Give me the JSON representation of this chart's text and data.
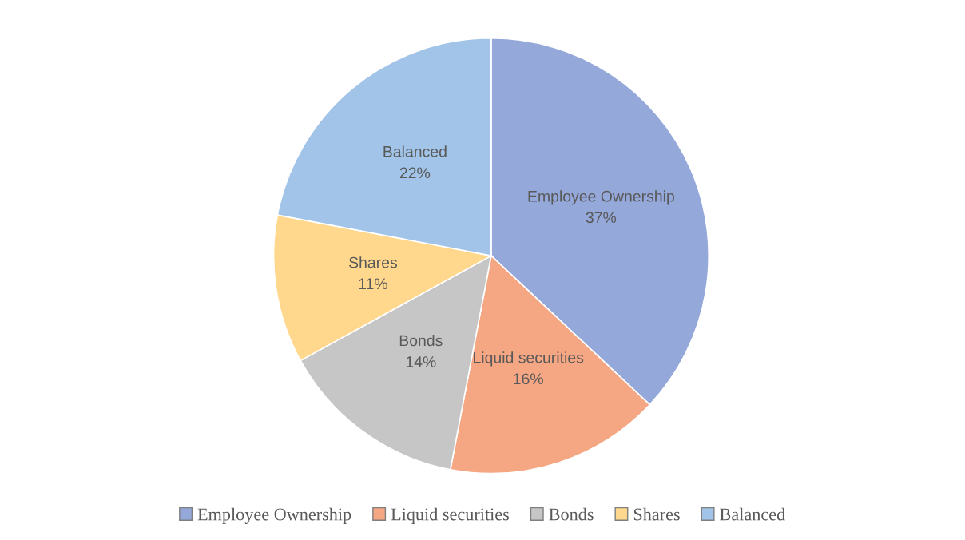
{
  "chart_data": {
    "type": "pie",
    "categories": [
      "Employee Ownership",
      "Liquid securities",
      "Bonds",
      "Shares",
      "Balanced"
    ],
    "values": [
      37,
      16,
      14,
      11,
      22
    ],
    "value_labels": [
      "37%",
      "16%",
      "14%",
      "11%",
      "22%"
    ],
    "colors": [
      "#95a8da",
      "#f5a683",
      "#c6c6c6",
      "#ffd88d",
      "#a1c4e8"
    ],
    "legend": "bottom"
  }
}
